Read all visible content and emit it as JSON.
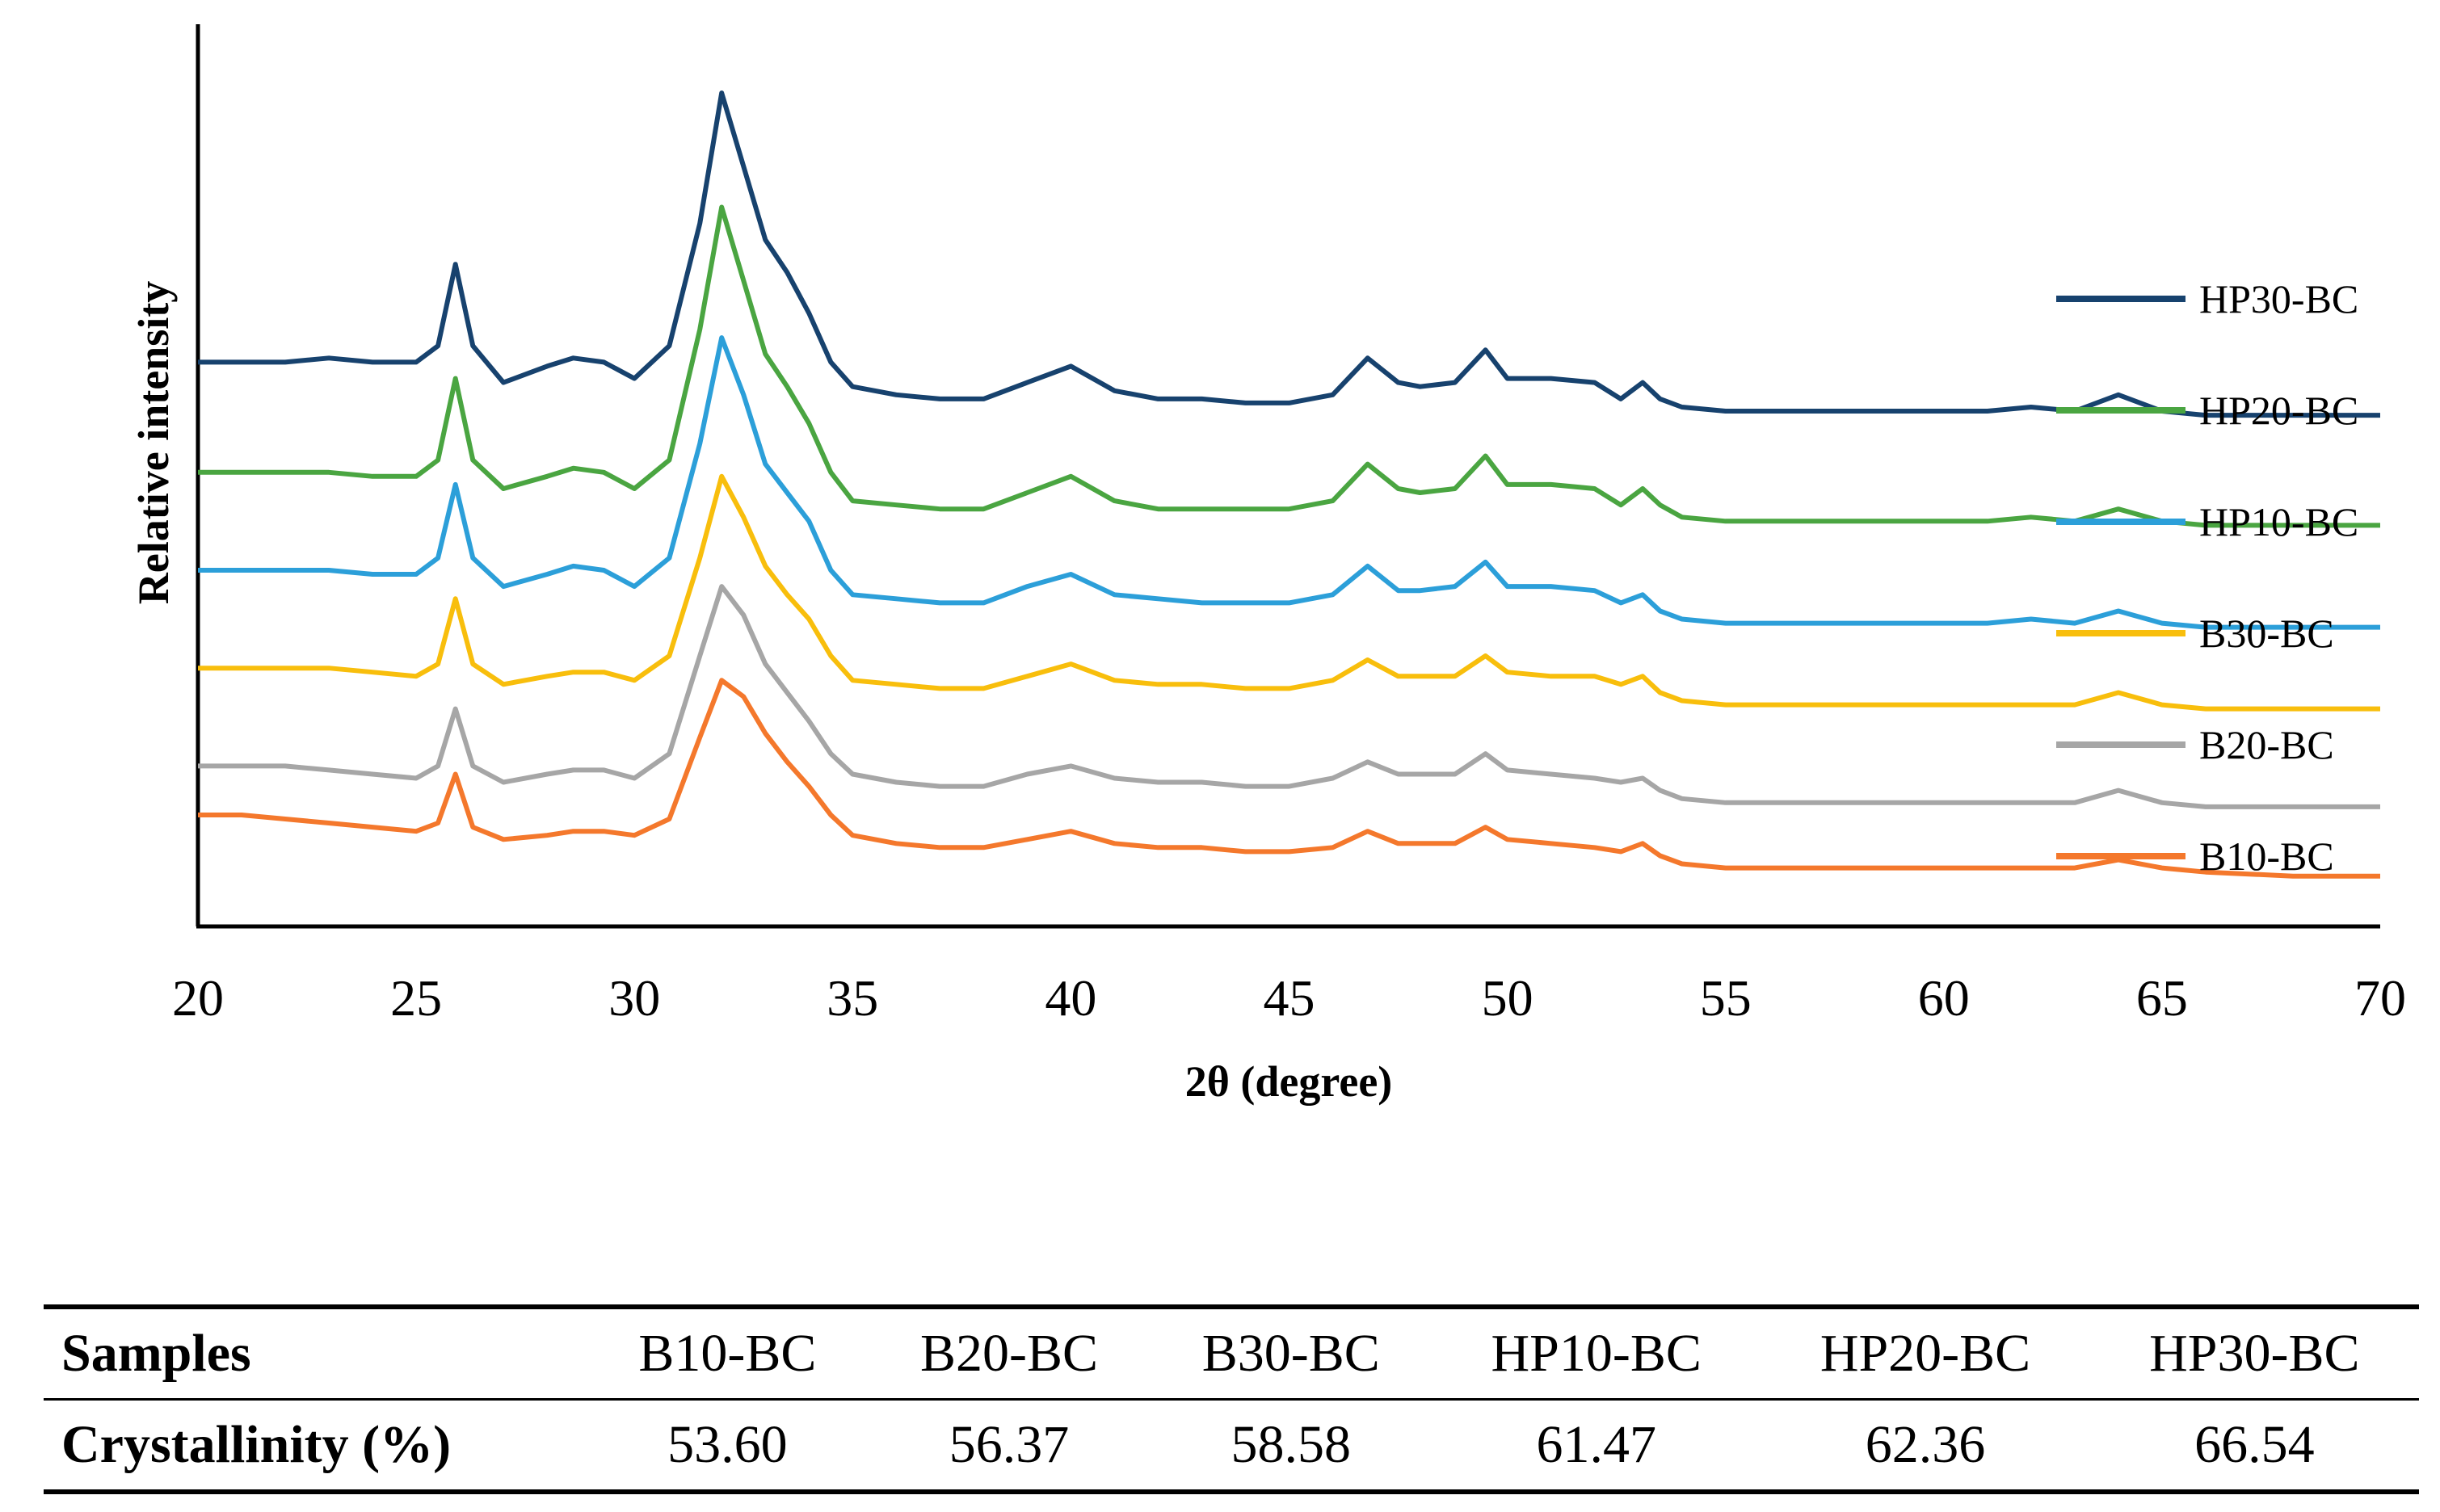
{
  "chart_data": {
    "type": "line",
    "title": "",
    "xlabel": "2θ (degree)",
    "ylabel": "Relative intensity",
    "xlim": [
      20,
      70
    ],
    "xticks": [
      "20",
      "25",
      "30",
      "35",
      "40",
      "45",
      "50",
      "55",
      "60",
      "65",
      "70"
    ],
    "y_ticks_shown": false,
    "legend_position": "right",
    "series": [
      {
        "name": "HP30-BC",
        "color": "#17426e",
        "x": [
          20,
          21,
          22,
          23,
          24,
          25,
          25.5,
          25.9,
          26.3,
          27,
          28,
          28.6,
          29.3,
          30,
          30.8,
          31.5,
          32,
          32.5,
          33,
          33.5,
          34,
          34.5,
          35,
          36,
          37,
          38,
          39,
          40,
          41,
          42,
          43,
          44,
          45,
          46,
          46.8,
          47.5,
          48,
          48.8,
          49.5,
          50,
          51,
          52,
          52.6,
          53.1,
          53.5,
          54,
          55,
          58,
          61,
          62,
          63,
          64,
          65,
          66,
          68,
          70
        ],
        "values": [
          0.66,
          0.66,
          0.66,
          0.665,
          0.66,
          0.66,
          0.68,
          0.78,
          0.68,
          0.635,
          0.655,
          0.665,
          0.66,
          0.64,
          0.68,
          0.83,
          0.99,
          0.9,
          0.81,
          0.77,
          0.72,
          0.66,
          0.63,
          0.62,
          0.615,
          0.615,
          0.635,
          0.655,
          0.625,
          0.615,
          0.615,
          0.61,
          0.61,
          0.62,
          0.665,
          0.635,
          0.63,
          0.635,
          0.675,
          0.64,
          0.64,
          0.635,
          0.615,
          0.635,
          0.615,
          0.605,
          0.6,
          0.6,
          0.6,
          0.605,
          0.6,
          0.62,
          0.6,
          0.595,
          0.595,
          0.595
        ]
      },
      {
        "name": "HP20-BC",
        "color": "#4aa541",
        "x": [
          20,
          21,
          22,
          23,
          24,
          25,
          25.5,
          25.9,
          26.3,
          27,
          28,
          28.6,
          29.3,
          30,
          30.8,
          31.5,
          32,
          32.5,
          33,
          33.5,
          34,
          34.5,
          35,
          36,
          37,
          38,
          39,
          40,
          41,
          42,
          43,
          44,
          45,
          46,
          46.8,
          47.5,
          48,
          48.8,
          49.5,
          50,
          51,
          52,
          52.6,
          53.1,
          53.5,
          54,
          55,
          58,
          61,
          62,
          63,
          64,
          65,
          66,
          68,
          70
        ],
        "values": [
          0.525,
          0.525,
          0.525,
          0.525,
          0.52,
          0.52,
          0.54,
          0.64,
          0.54,
          0.505,
          0.52,
          0.53,
          0.525,
          0.505,
          0.54,
          0.7,
          0.85,
          0.76,
          0.67,
          0.63,
          0.585,
          0.525,
          0.49,
          0.485,
          0.48,
          0.48,
          0.5,
          0.52,
          0.49,
          0.48,
          0.48,
          0.48,
          0.48,
          0.49,
          0.535,
          0.505,
          0.5,
          0.505,
          0.545,
          0.51,
          0.51,
          0.505,
          0.485,
          0.505,
          0.485,
          0.47,
          0.465,
          0.465,
          0.465,
          0.47,
          0.465,
          0.48,
          0.465,
          0.46,
          0.46,
          0.46
        ]
      },
      {
        "name": "HP10-BC",
        "color": "#2c9fd9",
        "x": [
          20,
          21,
          22,
          23,
          24,
          25,
          25.5,
          25.9,
          26.3,
          27,
          28,
          28.6,
          29.3,
          30,
          30.8,
          31.5,
          32,
          32.5,
          33,
          33.5,
          34,
          34.5,
          35,
          36,
          37,
          38,
          39,
          40,
          41,
          42,
          43,
          44,
          45,
          46,
          46.8,
          47.5,
          48,
          48.8,
          49.5,
          50,
          51,
          52,
          52.6,
          53.1,
          53.5,
          54,
          55,
          58,
          61,
          62,
          63,
          64,
          65,
          66,
          68,
          70
        ],
        "values": [
          0.405,
          0.405,
          0.405,
          0.405,
          0.4,
          0.4,
          0.42,
          0.51,
          0.42,
          0.385,
          0.4,
          0.41,
          0.405,
          0.385,
          0.42,
          0.56,
          0.69,
          0.62,
          0.535,
          0.5,
          0.465,
          0.405,
          0.375,
          0.37,
          0.365,
          0.365,
          0.385,
          0.4,
          0.375,
          0.37,
          0.365,
          0.365,
          0.365,
          0.375,
          0.41,
          0.38,
          0.38,
          0.385,
          0.415,
          0.385,
          0.385,
          0.38,
          0.365,
          0.375,
          0.355,
          0.345,
          0.34,
          0.34,
          0.34,
          0.345,
          0.34,
          0.355,
          0.34,
          0.335,
          0.335,
          0.335
        ]
      },
      {
        "name": "B30-BC",
        "color": "#f8be0c",
        "x": [
          20,
          21,
          22,
          23,
          24,
          25,
          25.5,
          25.9,
          26.3,
          27,
          28,
          28.6,
          29.3,
          30,
          30.8,
          31.5,
          32,
          32.5,
          33,
          33.5,
          34,
          34.5,
          35,
          36,
          37,
          38,
          39,
          40,
          41,
          42,
          43,
          44,
          45,
          46,
          46.8,
          47.5,
          48,
          48.8,
          49.5,
          50,
          51,
          52,
          52.6,
          53.1,
          53.5,
          54,
          55,
          58,
          61,
          62,
          63,
          64,
          65,
          66,
          68,
          70
        ],
        "values": [
          0.285,
          0.285,
          0.285,
          0.285,
          0.28,
          0.275,
          0.29,
          0.37,
          0.29,
          0.265,
          0.275,
          0.28,
          0.28,
          0.27,
          0.3,
          0.42,
          0.52,
          0.47,
          0.41,
          0.375,
          0.345,
          0.3,
          0.27,
          0.265,
          0.26,
          0.26,
          0.275,
          0.29,
          0.27,
          0.265,
          0.265,
          0.26,
          0.26,
          0.27,
          0.295,
          0.275,
          0.275,
          0.275,
          0.3,
          0.28,
          0.275,
          0.275,
          0.265,
          0.275,
          0.255,
          0.245,
          0.24,
          0.24,
          0.24,
          0.24,
          0.24,
          0.255,
          0.24,
          0.235,
          0.235,
          0.235
        ]
      },
      {
        "name": "B20-BC",
        "color": "#a6a6a6",
        "x": [
          20,
          21,
          22,
          23,
          24,
          25,
          25.5,
          25.9,
          26.3,
          27,
          28,
          28.6,
          29.3,
          30,
          30.8,
          31.5,
          32,
          32.5,
          33,
          33.5,
          34,
          34.5,
          35,
          36,
          37,
          38,
          39,
          40,
          41,
          42,
          43,
          44,
          45,
          46,
          46.8,
          47.5,
          48,
          48.8,
          49.5,
          50,
          51,
          52,
          52.6,
          53.1,
          53.5,
          54,
          55,
          58,
          61,
          62,
          63,
          64,
          65,
          66,
          68,
          70
        ],
        "values": [
          0.165,
          0.165,
          0.165,
          0.16,
          0.155,
          0.15,
          0.165,
          0.235,
          0.165,
          0.145,
          0.155,
          0.16,
          0.16,
          0.15,
          0.18,
          0.3,
          0.385,
          0.35,
          0.29,
          0.255,
          0.22,
          0.18,
          0.155,
          0.145,
          0.14,
          0.14,
          0.155,
          0.165,
          0.15,
          0.145,
          0.145,
          0.14,
          0.14,
          0.15,
          0.17,
          0.155,
          0.155,
          0.155,
          0.18,
          0.16,
          0.155,
          0.15,
          0.145,
          0.15,
          0.135,
          0.125,
          0.12,
          0.12,
          0.12,
          0.12,
          0.12,
          0.135,
          0.12,
          0.115,
          0.115,
          0.115
        ]
      },
      {
        "name": "B10-BC",
        "color": "#f4782c",
        "x": [
          20,
          21,
          22,
          23,
          24,
          25,
          25.5,
          25.9,
          26.3,
          27,
          28,
          28.6,
          29.3,
          30,
          30.8,
          31.5,
          32,
          32.5,
          33,
          33.5,
          34,
          34.5,
          35,
          36,
          37,
          38,
          39,
          40,
          41,
          42,
          43,
          44,
          45,
          46,
          46.8,
          47.5,
          48,
          48.8,
          49.5,
          50,
          51,
          52,
          52.6,
          53.1,
          53.5,
          54,
          55,
          58,
          61,
          62,
          63,
          64,
          65,
          66,
          68,
          70
        ],
        "values": [
          0.105,
          0.105,
          0.1,
          0.095,
          0.09,
          0.085,
          0.095,
          0.155,
          0.09,
          0.075,
          0.08,
          0.085,
          0.085,
          0.08,
          0.1,
          0.2,
          0.27,
          0.25,
          0.205,
          0.17,
          0.14,
          0.105,
          0.08,
          0.07,
          0.065,
          0.065,
          0.075,
          0.085,
          0.07,
          0.065,
          0.065,
          0.06,
          0.06,
          0.065,
          0.085,
          0.07,
          0.07,
          0.07,
          0.09,
          0.075,
          0.07,
          0.065,
          0.06,
          0.07,
          0.055,
          0.045,
          0.04,
          0.04,
          0.04,
          0.04,
          0.04,
          0.05,
          0.04,
          0.035,
          0.03,
          0.03
        ]
      }
    ]
  },
  "table": {
    "header_label": "Samples",
    "samples": [
      "B10-BC",
      "B20-BC",
      "B30-BC",
      "HP10-BC",
      "HP20-BC",
      "HP30-BC"
    ],
    "row_label": "Crystallinity (%)",
    "values": [
      "53.60",
      "56.37",
      "58.58",
      "61.47",
      "62.36",
      "66.54"
    ]
  }
}
